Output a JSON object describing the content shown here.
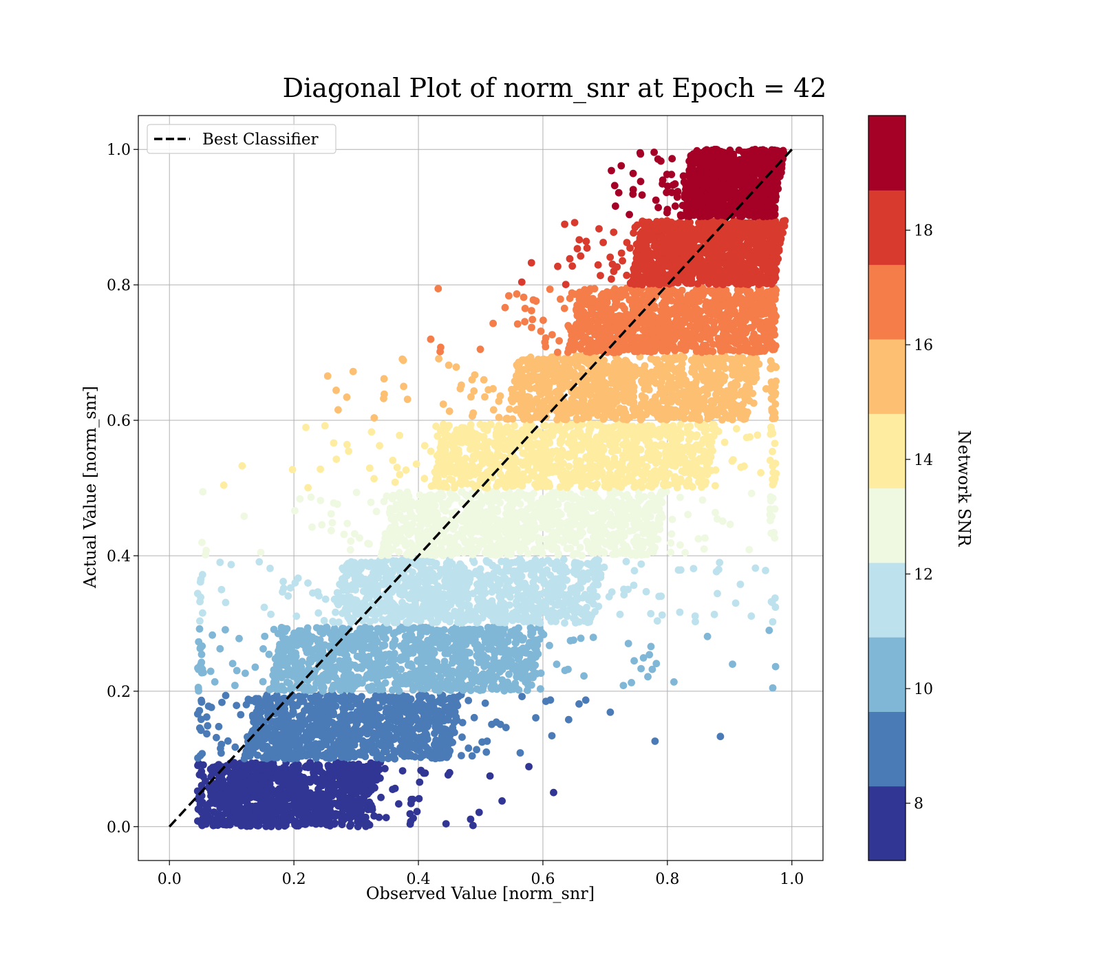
{
  "chart_data": {
    "type": "scatter",
    "title": "Diagonal Plot of norm_snr at Epoch = 42",
    "xlabel": "Observed Value [norm_snr]",
    "ylabel": "Actual Value [norm_snr]",
    "xlim": [
      -0.05,
      1.05
    ],
    "ylim": [
      -0.05,
      1.05
    ],
    "x_ticks": [
      "0.0",
      "0.2",
      "0.4",
      "0.6",
      "0.8",
      "1.0"
    ],
    "y_ticks": [
      "0.0",
      "0.2",
      "0.4",
      "0.6",
      "0.8",
      "1.0"
    ],
    "grid": true,
    "legend": {
      "placement": "top-left",
      "entries": [
        "Best Classifier"
      ]
    },
    "reference_line": {
      "name": "Best Classifier",
      "style": "dashed",
      "color": "#000000",
      "x": [
        0,
        1
      ],
      "y": [
        0,
        1
      ]
    },
    "colorbar": {
      "label": "Network SNR",
      "range": [
        7,
        20
      ],
      "ticks": [
        "8",
        "10",
        "12",
        "14",
        "16",
        "18"
      ],
      "band_colors": [
        "#313695",
        "#4a7bb7",
        "#80b6d6",
        "#bde2ee",
        "#eff8e1",
        "#feeda1",
        "#fdbf71",
        "#f57d4a",
        "#d83a2e",
        "#a50026"
      ]
    },
    "bands": [
      {
        "snr": 7.65,
        "y": [
          0.0,
          0.095
        ],
        "x_center": [
          0.05,
          0.32
        ],
        "spread": 0.08
      },
      {
        "snr": 8.95,
        "y": [
          0.1,
          0.195
        ],
        "x_center": [
          0.12,
          0.45
        ],
        "spread": 0.08
      },
      {
        "snr": 10.25,
        "y": [
          0.2,
          0.295
        ],
        "x_center": [
          0.16,
          0.58
        ],
        "spread": 0.08
      },
      {
        "snr": 11.55,
        "y": [
          0.3,
          0.395
        ],
        "x_center": [
          0.26,
          0.68
        ],
        "spread": 0.08
      },
      {
        "snr": 12.85,
        "y": [
          0.4,
          0.495
        ],
        "x_center": [
          0.34,
          0.78
        ],
        "spread": 0.08
      },
      {
        "snr": 14.15,
        "y": [
          0.5,
          0.595
        ],
        "x_center": [
          0.42,
          0.86
        ],
        "spread": 0.08
      },
      {
        "snr": 15.45,
        "y": [
          0.6,
          0.695
        ],
        "x_center": [
          0.54,
          0.93
        ],
        "spread": 0.07
      },
      {
        "snr": 16.75,
        "y": [
          0.7,
          0.795
        ],
        "x_center": [
          0.64,
          0.96
        ],
        "spread": 0.07
      },
      {
        "snr": 18.05,
        "y": [
          0.8,
          0.895
        ],
        "x_center": [
          0.74,
          0.97
        ],
        "spread": 0.06
      },
      {
        "snr": 19.35,
        "y": [
          0.9,
          1.0
        ],
        "x_center": [
          0.82,
          0.97
        ],
        "spread": 0.06
      }
    ]
  }
}
